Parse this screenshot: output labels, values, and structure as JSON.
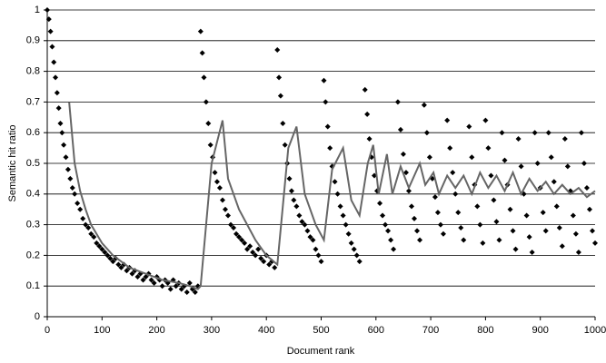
{
  "chart_data": {
    "type": "scatter",
    "xlabel": "Document rank",
    "ylabel": "Semantic hit ratio",
    "xlim": [
      0,
      1000
    ],
    "xticks": [
      0,
      100,
      200,
      300,
      400,
      500,
      600,
      700,
      800,
      900,
      1000
    ],
    "ylim": [
      0,
      1
    ],
    "yticks": [
      0,
      0.1,
      0.2,
      0.3,
      0.4,
      0.5,
      0.6,
      0.7,
      0.8,
      0.9,
      1
    ],
    "grid": true,
    "series": [
      {
        "type": "scatter",
        "color": "#000000",
        "x": [
          0,
          3,
          6,
          9,
          12,
          15,
          18,
          21,
          24,
          27,
          30,
          34,
          38,
          42,
          46,
          50,
          55,
          60,
          65,
          70,
          75,
          80,
          85,
          90,
          95,
          100,
          105,
          110,
          115,
          120,
          125,
          130,
          135,
          140,
          145,
          150,
          155,
          160,
          165,
          170,
          175,
          180,
          185,
          190,
          195,
          200,
          205,
          210,
          215,
          220,
          225,
          230,
          235,
          240,
          245,
          250,
          255,
          260,
          265,
          270,
          275,
          280,
          283,
          286,
          290,
          294,
          298,
          302,
          306,
          310,
          315,
          320,
          325,
          330,
          335,
          340,
          345,
          350,
          355,
          360,
          365,
          370,
          375,
          380,
          385,
          390,
          395,
          400,
          405,
          410,
          415,
          420,
          423,
          426,
          430,
          434,
          438,
          442,
          446,
          450,
          455,
          460,
          465,
          470,
          475,
          480,
          485,
          490,
          495,
          500,
          505,
          508,
          512,
          516,
          520,
          525,
          530,
          535,
          540,
          545,
          550,
          555,
          560,
          565,
          570,
          580,
          584,
          588,
          592,
          597,
          602,
          607,
          612,
          617,
          622,
          627,
          632,
          640,
          645,
          650,
          655,
          660,
          665,
          670,
          675,
          680,
          688,
          693,
          698,
          703,
          708,
          713,
          718,
          723,
          730,
          735,
          740,
          745,
          750,
          755,
          760,
          770,
          775,
          780,
          785,
          790,
          795,
          800,
          805,
          810,
          815,
          820,
          825,
          830,
          835,
          840,
          845,
          850,
          855,
          860,
          865,
          870,
          875,
          880,
          885,
          890,
          895,
          900,
          905,
          910,
          915,
          920,
          925,
          930,
          935,
          940,
          945,
          950,
          955,
          960,
          965,
          970,
          975,
          980,
          985,
          990,
          995,
          1000
        ],
        "values": [
          1,
          0.97,
          0.93,
          0.88,
          0.83,
          0.78,
          0.73,
          0.68,
          0.63,
          0.6,
          0.56,
          0.52,
          0.48,
          0.45,
          0.42,
          0.4,
          0.37,
          0.35,
          0.32,
          0.3,
          0.29,
          0.27,
          0.26,
          0.24,
          0.23,
          0.22,
          0.21,
          0.2,
          0.19,
          0.18,
          0.19,
          0.17,
          0.16,
          0.17,
          0.15,
          0.16,
          0.14,
          0.15,
          0.13,
          0.14,
          0.12,
          0.13,
          0.14,
          0.12,
          0.11,
          0.13,
          0.12,
          0.1,
          0.12,
          0.11,
          0.09,
          0.12,
          0.1,
          0.11,
          0.09,
          0.1,
          0.08,
          0.11,
          0.09,
          0.08,
          0.1,
          0.93,
          0.86,
          0.78,
          0.7,
          0.63,
          0.56,
          0.52,
          0.47,
          0.44,
          0.42,
          0.38,
          0.35,
          0.33,
          0.3,
          0.29,
          0.27,
          0.26,
          0.25,
          0.24,
          0.22,
          0.23,
          0.21,
          0.2,
          0.22,
          0.19,
          0.18,
          0.2,
          0.17,
          0.18,
          0.16,
          0.87,
          0.78,
          0.72,
          0.63,
          0.56,
          0.5,
          0.45,
          0.41,
          0.38,
          0.36,
          0.33,
          0.31,
          0.3,
          0.28,
          0.26,
          0.25,
          0.22,
          0.2,
          0.18,
          0.77,
          0.7,
          0.62,
          0.55,
          0.49,
          0.44,
          0.4,
          0.36,
          0.33,
          0.3,
          0.27,
          0.24,
          0.22,
          0.2,
          0.18,
          0.74,
          0.66,
          0.58,
          0.52,
          0.46,
          0.41,
          0.37,
          0.33,
          0.3,
          0.28,
          0.25,
          0.22,
          0.7,
          0.61,
          0.53,
          0.47,
          0.41,
          0.36,
          0.32,
          0.28,
          0.25,
          0.69,
          0.6,
          0.52,
          0.45,
          0.39,
          0.34,
          0.3,
          0.27,
          0.64,
          0.55,
          0.47,
          0.4,
          0.34,
          0.29,
          0.25,
          0.62,
          0.52,
          0.43,
          0.36,
          0.3,
          0.24,
          0.64,
          0.55,
          0.46,
          0.38,
          0.31,
          0.25,
          0.6,
          0.51,
          0.43,
          0.35,
          0.28,
          0.22,
          0.58,
          0.49,
          0.4,
          0.33,
          0.26,
          0.21,
          0.6,
          0.5,
          0.42,
          0.34,
          0.28,
          0.6,
          0.52,
          0.44,
          0.36,
          0.29,
          0.23,
          0.58,
          0.49,
          0.41,
          0.33,
          0.27,
          0.21,
          0.6,
          0.5,
          0.42,
          0.35,
          0.28,
          0.24
        ]
      },
      {
        "type": "line",
        "color": "#666666",
        "x": [
          40,
          50,
          60,
          70,
          80,
          100,
          120,
          150,
          180,
          210,
          240,
          260,
          275,
          280,
          300,
          320,
          330,
          350,
          380,
          400,
          420,
          440,
          455,
          470,
          490,
          505,
          520,
          540,
          555,
          570,
          585,
          595,
          605,
          620,
          630,
          645,
          660,
          680,
          690,
          705,
          715,
          730,
          745,
          760,
          775,
          790,
          805,
          820,
          835,
          850,
          865,
          880,
          895,
          910,
          925,
          940,
          955,
          970,
          985,
          1000
        ],
        "values": [
          0.7,
          0.5,
          0.41,
          0.35,
          0.3,
          0.24,
          0.2,
          0.16,
          0.14,
          0.12,
          0.11,
          0.1,
          0.09,
          0.1,
          0.5,
          0.64,
          0.45,
          0.35,
          0.25,
          0.2,
          0.17,
          0.55,
          0.62,
          0.4,
          0.3,
          0.25,
          0.48,
          0.55,
          0.38,
          0.33,
          0.5,
          0.56,
          0.4,
          0.53,
          0.4,
          0.49,
          0.42,
          0.5,
          0.43,
          0.47,
          0.4,
          0.46,
          0.42,
          0.46,
          0.4,
          0.47,
          0.42,
          0.46,
          0.41,
          0.47,
          0.4,
          0.45,
          0.41,
          0.44,
          0.4,
          0.43,
          0.4,
          0.42,
          0.39,
          0.41
        ]
      }
    ]
  }
}
